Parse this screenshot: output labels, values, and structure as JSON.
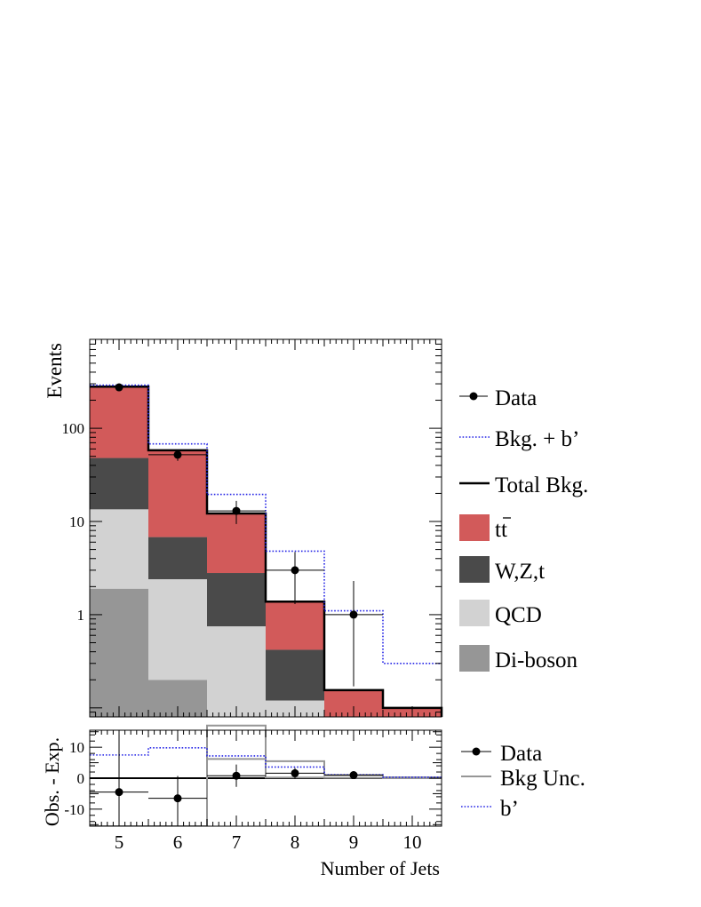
{
  "chart_data": [
    {
      "panel": "main",
      "type": "bar",
      "stacked": true,
      "yscale": "log",
      "ylabel": "Events",
      "xlim": [
        4.5,
        10.5
      ],
      "ylim": [
        0.08,
        900
      ],
      "categories": [
        5,
        6,
        7,
        8,
        9,
        10
      ],
      "ytick_labels": [
        {
          "value": 1,
          "label": "1"
        },
        {
          "value": 10,
          "label": "10"
        },
        {
          "value": 100,
          "label": "100"
        }
      ],
      "series": [
        {
          "name": "Di-boson",
          "color": "#969696",
          "values": [
            1.9,
            0.2,
            0.0,
            0.0,
            0.0,
            0.0
          ]
        },
        {
          "name": "QCD",
          "color": "#d2d2d2",
          "values": [
            11.6,
            2.2,
            0.75,
            0.12,
            0.0,
            0.0
          ]
        },
        {
          "name": "W,Z,t",
          "color": "#4a4a4a",
          "values": [
            34.5,
            4.4,
            2.05,
            0.3,
            0.0,
            0.0
          ]
        },
        {
          "name": "tt̄",
          "color": "#d25a5a",
          "values": [
            232,
            51.2,
            9.2,
            0.96,
            0.155,
            0.1
          ]
        }
      ],
      "total_bkg": {
        "name": "Total Bkg.",
        "values": [
          280,
          58,
          12.2,
          1.38,
          0.155,
          0.1
        ]
      },
      "bkg_plus_bprime": {
        "name": "Bkg. + b'",
        "color": "#2626e6",
        "values": [
          290,
          68,
          19.5,
          4.8,
          1.1,
          0.3
        ]
      },
      "data": {
        "name": "Data",
        "x": [
          5,
          6,
          7,
          8,
          9
        ],
        "y": [
          275,
          52,
          13,
          3,
          1
        ],
        "err_low": [
          16.6,
          7.2,
          3.6,
          1.7,
          0.83
        ],
        "err_high": [
          16.6,
          7.2,
          3.6,
          1.7,
          1.3
        ]
      }
    },
    {
      "panel": "ratio",
      "type": "line",
      "ylabel": "Obs. - Exp.",
      "xlabel": "Number of Jets",
      "xlim": [
        4.5,
        10.5
      ],
      "ylim": [
        -15.5,
        15.5
      ],
      "xticks": [
        5,
        6,
        7,
        8,
        9,
        10
      ],
      "xtick_labels": [
        "5",
        "6",
        "7",
        "8",
        "9",
        "10"
      ],
      "yticks": [
        -10,
        0,
        10
      ],
      "ytick_labels": [
        "-10",
        "0",
        "10"
      ],
      "bprime": {
        "name": "b'",
        "color": "#2626e6",
        "values": [
          7.5,
          9.8,
          7.2,
          3.6,
          1.1,
          0.3
        ]
      },
      "bkg_unc": {
        "name": "Bkg Unc.",
        "color": "#969696",
        "upper": [
          -15.5,
          -15.5,
          17,
          5.5,
          1.0,
          0.3
        ],
        "lower": [
          -15.5,
          -15.5,
          6.2,
          0.2,
          0.1,
          0.0
        ]
      },
      "data": {
        "name": "Data",
        "x": [
          5,
          6,
          7,
          8,
          9
        ],
        "y": [
          -4.5,
          -6.5,
          0.8,
          1.6,
          1.0
        ],
        "err_low": [
          16.6,
          7.2,
          3.6,
          1.7,
          0.83
        ],
        "err_high": [
          16.6,
          7.2,
          3.6,
          1.7,
          1.3
        ]
      }
    }
  ],
  "legend_main": [
    {
      "label": "Data",
      "kind": "marker"
    },
    {
      "label": "Bkg. + b’",
      "kind": "dotted"
    },
    {
      "label": "Total Bkg.",
      "kind": "line"
    },
    {
      "label": "tt",
      "kind": "box",
      "color": "#d25a5a"
    },
    {
      "label": "W,Z,t",
      "kind": "box",
      "color": "#4a4a4a"
    },
    {
      "label": "QCD",
      "kind": "box",
      "color": "#d2d2d2"
    },
    {
      "label": "Di-boson",
      "kind": "box",
      "color": "#969696"
    }
  ],
  "legend_ratio": [
    {
      "label": "Data",
      "kind": "marker"
    },
    {
      "label": "Bkg Unc.",
      "kind": "grayline"
    },
    {
      "label": "b’",
      "kind": "dotted"
    }
  ]
}
